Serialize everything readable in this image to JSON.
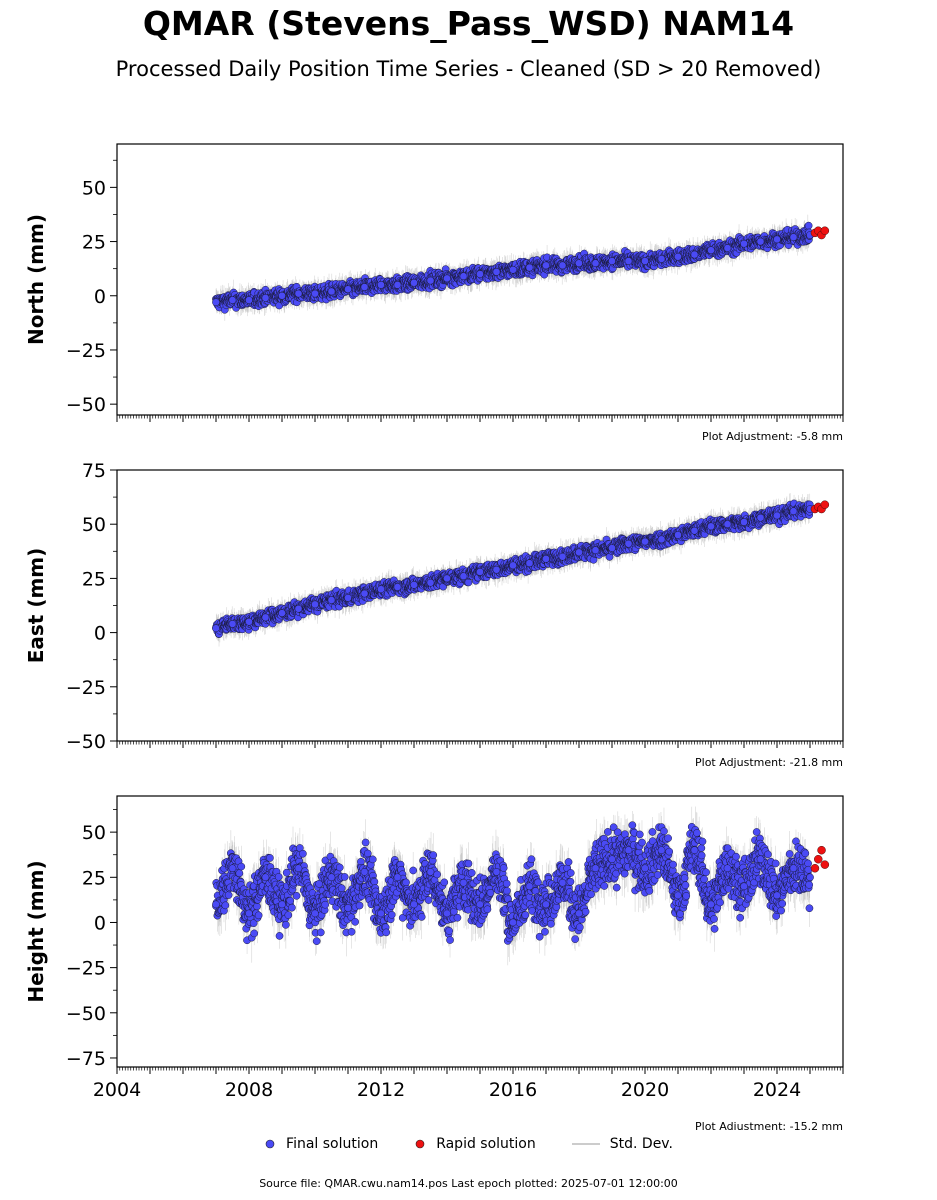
{
  "title": "QMAR (Stevens_Pass_WSD) NAM14",
  "subtitle": "Processed Daily Position Time Series - Cleaned (SD > 20 Removed)",
  "colors": {
    "final": "#4a4af5",
    "rapid": "#ee1111",
    "stddev": "#bbbbbb"
  },
  "legend": {
    "final": "Final solution",
    "rapid": "Rapid solution",
    "stddev": "Std. Dev."
  },
  "footer": "Source file: QMAR.cwu.nam14.pos  Last epoch plotted: 2025-07-01 12:00:00",
  "chart_data": [
    {
      "type": "scatter",
      "ylabel": "North (mm)",
      "adjustment": "Plot Adjustment: -5.8 mm",
      "xlim": [
        2004,
        2026
      ],
      "ylim": [
        -55,
        70
      ],
      "yticks": [
        -50,
        -25,
        0,
        25,
        50
      ],
      "series": [
        {
          "name": "Final solution",
          "x": [
            2007.0,
            2007.5,
            2008.0,
            2008.5,
            2009.0,
            2009.5,
            2010.0,
            2010.5,
            2011.0,
            2011.5,
            2012.0,
            2012.5,
            2013.0,
            2013.5,
            2014.0,
            2014.5,
            2015.0,
            2015.5,
            2016.0,
            2016.5,
            2017.0,
            2017.5,
            2018.0,
            2018.5,
            2019.0,
            2019.5,
            2020.0,
            2020.5,
            2021.0,
            2021.5,
            2022.0,
            2022.5,
            2023.0,
            2023.5,
            2024.0,
            2024.5,
            2025.0
          ],
          "y": [
            -3,
            -2,
            -2,
            -1,
            0,
            1,
            1,
            2,
            3,
            4,
            5,
            5,
            6,
            7,
            8,
            9,
            10,
            11,
            12,
            13,
            14,
            14,
            15,
            15,
            16,
            16,
            16,
            17,
            18,
            19,
            21,
            22,
            24,
            25,
            26,
            27,
            28
          ]
        },
        {
          "name": "Rapid solution",
          "x": [
            2025.15,
            2025.25,
            2025.35,
            2025.45
          ],
          "y": [
            29,
            30,
            28,
            30
          ]
        }
      ]
    },
    {
      "type": "scatter",
      "ylabel": "East (mm)",
      "adjustment": "Plot Adjustment: -21.8 mm",
      "xlim": [
        2004,
        2026
      ],
      "ylim": [
        -50,
        75
      ],
      "yticks": [
        -50,
        -25,
        0,
        25,
        50,
        75
      ],
      "series": [
        {
          "name": "Final solution",
          "x": [
            2007.0,
            2007.5,
            2008.0,
            2008.5,
            2009.0,
            2009.5,
            2010.0,
            2010.5,
            2011.0,
            2011.5,
            2012.0,
            2012.5,
            2013.0,
            2013.5,
            2014.0,
            2014.5,
            2015.0,
            2015.5,
            2016.0,
            2016.5,
            2017.0,
            2017.5,
            2018.0,
            2018.5,
            2019.0,
            2019.5,
            2020.0,
            2020.5,
            2021.0,
            2021.5,
            2022.0,
            2022.5,
            2023.0,
            2023.5,
            2024.0,
            2024.5,
            2025.0
          ],
          "y": [
            2,
            4,
            5,
            7,
            9,
            11,
            13,
            15,
            16,
            18,
            20,
            21,
            22,
            23,
            25,
            26,
            28,
            29,
            31,
            32,
            34,
            35,
            37,
            38,
            39,
            41,
            42,
            43,
            45,
            47,
            49,
            50,
            51,
            53,
            54,
            56,
            57
          ]
        },
        {
          "name": "Rapid solution",
          "x": [
            2025.15,
            2025.25,
            2025.35,
            2025.45
          ],
          "y": [
            57,
            58,
            57,
            59
          ]
        }
      ]
    },
    {
      "type": "scatter",
      "ylabel": "Height (mm)",
      "adjustment": "Plot Adjustment: -15.2 mm",
      "xlim": [
        2004,
        2026
      ],
      "ylim": [
        -80,
        70
      ],
      "yticks": [
        -75,
        -50,
        -25,
        0,
        25,
        50
      ],
      "xticks": [
        2004,
        2008,
        2012,
        2016,
        2020,
        2024
      ],
      "series": [
        {
          "name": "Final solution",
          "x": [
            2007.0,
            2007.5,
            2008.0,
            2008.5,
            2009.0,
            2009.5,
            2010.0,
            2010.5,
            2011.0,
            2011.5,
            2012.0,
            2012.5,
            2013.0,
            2013.5,
            2014.0,
            2014.5,
            2015.0,
            2015.5,
            2016.0,
            2016.5,
            2017.0,
            2017.5,
            2018.0,
            2018.5,
            2019.0,
            2019.5,
            2020.0,
            2020.5,
            2021.0,
            2021.5,
            2022.0,
            2022.5,
            2023.0,
            2023.5,
            2024.0,
            2024.5,
            2025.0
          ],
          "y": [
            10,
            30,
            5,
            25,
            10,
            30,
            5,
            25,
            8,
            28,
            5,
            25,
            10,
            28,
            5,
            22,
            10,
            28,
            0,
            20,
            10,
            22,
            5,
            30,
            35,
            40,
            30,
            40,
            15,
            40,
            10,
            30,
            20,
            35,
            15,
            30,
            25
          ]
        },
        {
          "name": "Rapid solution",
          "x": [
            2025.15,
            2025.25,
            2025.35,
            2025.45
          ],
          "y": [
            30,
            35,
            40,
            32
          ]
        }
      ]
    }
  ]
}
